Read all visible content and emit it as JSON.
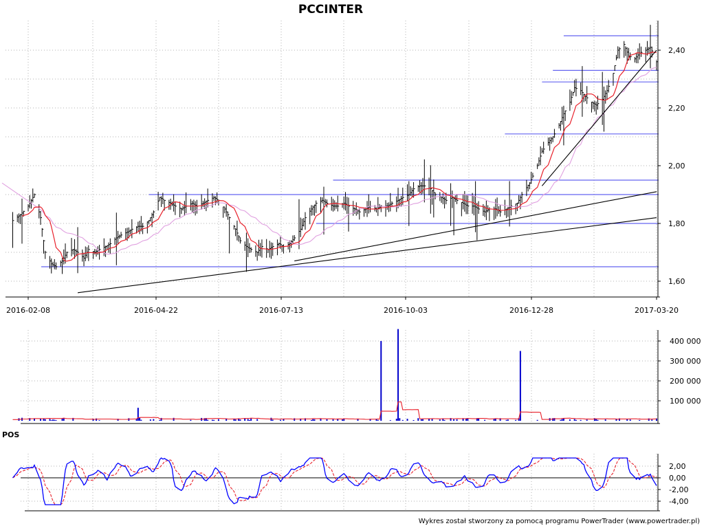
{
  "chart_data": [
    {
      "type": "ohlc",
      "panel": "price",
      "title": "PCCINTER",
      "x_tick_labels": [
        "2016-02-08",
        "2016-04-22",
        "2016-07-13",
        "2016-10-03",
        "2016-12-28",
        "2017-03-20"
      ],
      "y_tick_labels": [
        "1,60",
        "1,80",
        "2,00",
        "2,20",
        "2,40"
      ],
      "ylim": [
        1.54,
        2.48
      ],
      "grid": true,
      "price_path": [
        [
          "2016-01-29",
          1.81
        ],
        [
          "2016-02-03",
          1.83
        ],
        [
          "2016-02-08",
          1.86
        ],
        [
          "2016-02-12",
          1.9
        ],
        [
          "2016-02-16",
          1.82
        ],
        [
          "2016-02-19",
          1.7
        ],
        [
          "2016-02-23",
          1.66
        ],
        [
          "2016-02-26",
          1.65
        ],
        [
          "2016-03-01",
          1.67
        ],
        [
          "2016-03-04",
          1.7
        ],
        [
          "2016-03-08",
          1.71
        ],
        [
          "2016-03-11",
          1.7
        ],
        [
          "2016-03-15",
          1.68
        ],
        [
          "2016-03-18",
          1.71
        ],
        [
          "2016-03-22",
          1.7
        ],
        [
          "2016-03-25",
          1.71
        ],
        [
          "2016-03-29",
          1.72
        ],
        [
          "2016-04-01",
          1.73
        ],
        [
          "2016-04-05",
          1.75
        ],
        [
          "2016-04-08",
          1.76
        ],
        [
          "2016-04-12",
          1.77
        ],
        [
          "2016-04-15",
          1.78
        ],
        [
          "2016-04-19",
          1.79
        ],
        [
          "2016-04-22",
          1.79
        ],
        [
          "2016-04-26",
          1.81
        ],
        [
          "2016-04-29",
          1.84
        ],
        [
          "2016-05-03",
          1.89
        ],
        [
          "2016-05-06",
          1.88
        ],
        [
          "2016-05-10",
          1.87
        ],
        [
          "2016-05-13",
          1.86
        ],
        [
          "2016-05-17",
          1.85
        ],
        [
          "2016-05-20",
          1.86
        ],
        [
          "2016-05-24",
          1.87
        ],
        [
          "2016-05-27",
          1.86
        ],
        [
          "2016-05-31",
          1.87
        ],
        [
          "2016-06-03",
          1.88
        ],
        [
          "2016-06-07",
          1.89
        ],
        [
          "2016-06-10",
          1.88
        ],
        [
          "2016-06-14",
          1.85
        ],
        [
          "2016-06-17",
          1.82
        ],
        [
          "2016-06-21",
          1.78
        ],
        [
          "2016-06-24",
          1.74
        ],
        [
          "2016-06-28",
          1.72
        ],
        [
          "2016-07-01",
          1.71
        ],
        [
          "2016-07-05",
          1.7
        ],
        [
          "2016-07-08",
          1.72
        ],
        [
          "2016-07-12",
          1.71
        ],
        [
          "2016-07-15",
          1.72
        ],
        [
          "2016-07-19",
          1.73
        ],
        [
          "2016-07-22",
          1.72
        ],
        [
          "2016-07-26",
          1.73
        ],
        [
          "2016-07-29",
          1.75
        ],
        [
          "2016-08-02",
          1.78
        ],
        [
          "2016-08-05",
          1.82
        ],
        [
          "2016-08-09",
          1.85
        ],
        [
          "2016-08-12",
          1.87
        ],
        [
          "2016-08-16",
          1.88
        ],
        [
          "2016-08-19",
          1.87
        ],
        [
          "2016-08-23",
          1.86
        ],
        [
          "2016-08-26",
          1.86
        ],
        [
          "2016-08-30",
          1.87
        ],
        [
          "2016-09-02",
          1.86
        ],
        [
          "2016-09-06",
          1.85
        ],
        [
          "2016-09-09",
          1.84
        ],
        [
          "2016-09-13",
          1.85
        ],
        [
          "2016-09-16",
          1.86
        ],
        [
          "2016-09-20",
          1.85
        ],
        [
          "2016-09-23",
          1.86
        ],
        [
          "2016-09-27",
          1.86
        ],
        [
          "2016-09-30",
          1.87
        ],
        [
          "2016-10-04",
          1.88
        ],
        [
          "2016-10-07",
          1.89
        ],
        [
          "2016-10-11",
          1.9
        ],
        [
          "2016-10-14",
          1.92
        ],
        [
          "2016-10-18",
          1.93
        ],
        [
          "2016-10-21",
          1.93
        ],
        [
          "2016-10-25",
          1.92
        ],
        [
          "2016-10-28",
          1.9
        ],
        [
          "2016-11-01",
          1.89
        ],
        [
          "2016-11-04",
          1.88
        ],
        [
          "2016-11-08",
          1.89
        ],
        [
          "2016-11-11",
          1.88
        ],
        [
          "2016-11-15",
          1.87
        ],
        [
          "2016-11-18",
          1.86
        ],
        [
          "2016-11-22",
          1.86
        ],
        [
          "2016-11-25",
          1.85
        ],
        [
          "2016-11-29",
          1.84
        ],
        [
          "2016-12-02",
          1.85
        ],
        [
          "2016-12-06",
          1.85
        ],
        [
          "2016-12-09",
          1.84
        ],
        [
          "2016-12-13",
          1.85
        ],
        [
          "2016-12-16",
          1.86
        ],
        [
          "2016-12-20",
          1.87
        ],
        [
          "2016-12-23",
          1.9
        ],
        [
          "2016-12-28",
          1.94
        ],
        [
          "2017-01-02",
          2.0
        ],
        [
          "2017-01-05",
          2.05
        ],
        [
          "2017-01-09",
          2.08
        ],
        [
          "2017-01-12",
          2.1
        ],
        [
          "2017-01-16",
          2.14
        ],
        [
          "2017-01-19",
          2.18
        ],
        [
          "2017-01-23",
          2.22
        ],
        [
          "2017-01-26",
          2.27
        ],
        [
          "2017-01-30",
          2.26
        ],
        [
          "2017-02-02",
          2.24
        ],
        [
          "2017-02-06",
          2.22
        ],
        [
          "2017-02-09",
          2.21
        ],
        [
          "2017-02-13",
          2.23
        ],
        [
          "2017-02-16",
          2.26
        ],
        [
          "2017-02-20",
          2.32
        ],
        [
          "2017-02-23",
          2.4
        ],
        [
          "2017-02-27",
          2.42
        ],
        [
          "2017-03-02",
          2.38
        ],
        [
          "2017-03-06",
          2.37
        ],
        [
          "2017-03-09",
          2.39
        ],
        [
          "2017-03-13",
          2.4
        ],
        [
          "2017-03-16",
          2.41
        ],
        [
          "2017-03-20",
          2.36
        ]
      ],
      "colors": {
        "sma_fast": "#e8202a",
        "sma_slow": "#e0a0e0",
        "levels": "#6464f0",
        "trendlines": "#000000",
        "bars": "#000000"
      }
    },
    {
      "type": "bar",
      "panel": "volume",
      "y_tick_labels": [
        "100 000",
        "200 000",
        "300 000",
        "400 000"
      ],
      "ylim": [
        0,
        470000
      ],
      "spikes": [
        [
          "2016-04-19",
          65000
        ],
        [
          "2016-08-26",
          10000
        ],
        [
          "2016-09-23",
          400000
        ],
        [
          "2016-10-04",
          460000
        ],
        [
          "2016-12-22",
          350000
        ]
      ],
      "colors": {
        "bars": "#0000cc",
        "average": "#e8202a"
      }
    },
    {
      "type": "line",
      "panel": "oscillator",
      "label": "POS",
      "y_tick_labels": [
        "2,00",
        "0,00",
        "-2,00",
        "-4,00"
      ],
      "ylim": [
        -5,
        3.5
      ],
      "colors": {
        "osc": "#0000ff",
        "signal": "#e8202a",
        "zero": "#000000"
      }
    }
  ],
  "credit": "Wykres został stworzony za pomocą programu PowerTrader (www.powertrader.pl)"
}
